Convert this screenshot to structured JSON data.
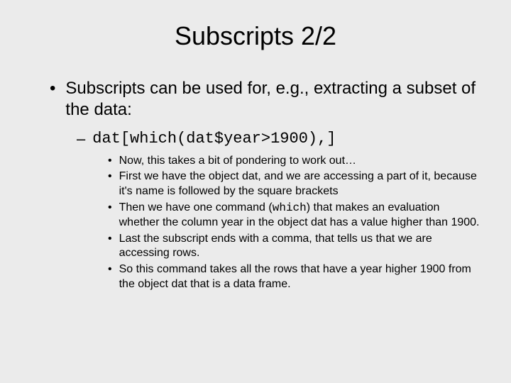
{
  "slide": {
    "title": "Subscripts 2/2",
    "background_color": "#ebebeb",
    "text_color": "#000000",
    "title_fontsize": 36,
    "body_fontsize": 24,
    "code_fontsize": 22,
    "sub_fontsize": 16,
    "font_family": "Arial",
    "code_font_family": "Courier New",
    "level1": {
      "bullet": "•",
      "text": "Subscripts can be used for, e.g., extracting a subset of the data:"
    },
    "level2": {
      "bullet": "–",
      "code": "dat[which(dat$year>1900),]"
    },
    "level3": {
      "bullet": "•",
      "items": [
        {
          "text": "Now, this takes a bit of pondering to work out…"
        },
        {
          "text": "First we have the object dat, and we are accessing a part of it, because it's name is followed by the square brackets"
        },
        {
          "prefix": "Then we have one command (",
          "code": "which",
          "suffix": ") that makes an evaluation whether the column year in the object dat has a value higher than 1900."
        },
        {
          "text": "Last the subscript ends with a comma, that tells us that we are accessing rows."
        },
        {
          "text": "So this command takes all the rows that have a year higher 1900 from the object dat that is a data frame."
        }
      ]
    }
  }
}
